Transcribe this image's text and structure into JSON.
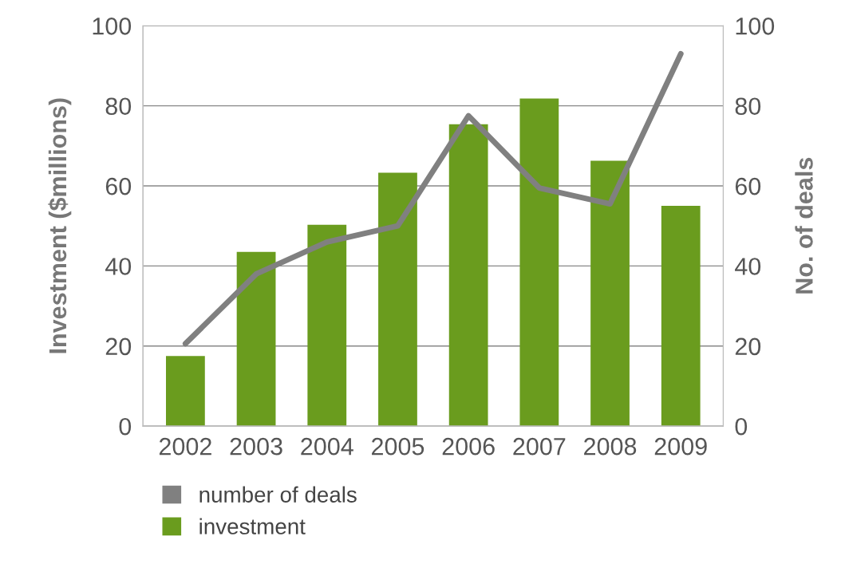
{
  "chart_data": {
    "type": "bar",
    "ylabel": "Investment ($millions)",
    "y2label": "No. of deals",
    "categories": [
      "2002",
      "2003",
      "2004",
      "2005",
      "2006",
      "2007",
      "2008",
      "2009"
    ],
    "series": [
      {
        "name": "number of deals",
        "type": "line",
        "axis": "y2",
        "color": "#808080",
        "values": [
          20.6,
          38,
          46,
          50,
          77.5,
          59.5,
          55.5,
          93
        ]
      },
      {
        "name": "investment",
        "color": "#6a9c1e",
        "values": [
          17.5,
          43.5,
          50.3,
          63.3,
          75.4,
          81.8,
          66.3,
          55
        ]
      }
    ],
    "ylim": [
      0,
      100
    ],
    "yticks": [
      0,
      20,
      40,
      60,
      80,
      100
    ],
    "y2lim": [
      0,
      100
    ],
    "y2ticks": [
      0,
      20,
      40,
      60,
      80,
      100
    ],
    "grid": "y",
    "legend": "bottom",
    "marker": "none",
    "line_style": "solid"
  }
}
